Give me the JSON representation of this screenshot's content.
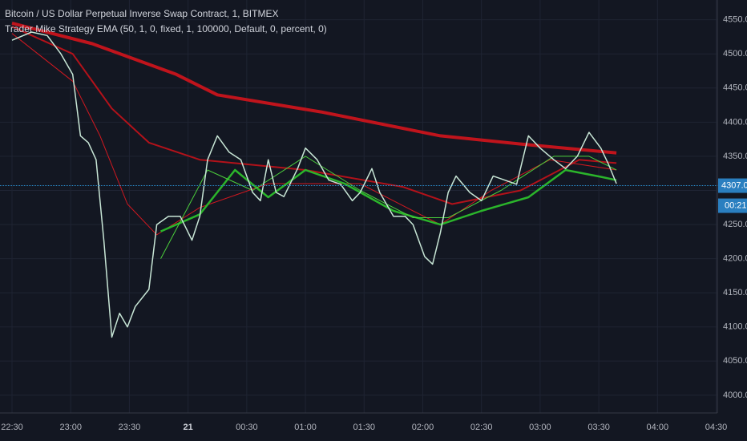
{
  "chart_data": {
    "type": "line",
    "title": "Bitcoin / US Dollar Perpetual Inverse Swap Contract, 1, BITMEX",
    "subtitle": "Trader Mike Strategy EMA (50, 1, 0, fixed, 1, 100000, Default, 0, percent, 0)",
    "xlim": [
      -6.15,
      360.6
    ],
    "ylim": [
      3974,
      4579
    ],
    "xticks": [
      {
        "value": 0,
        "label": "22:30"
      },
      {
        "value": 30,
        "label": "23:00"
      },
      {
        "value": 60,
        "label": "23:30"
      },
      {
        "value": 90,
        "label": "21"
      },
      {
        "value": 120,
        "label": "00:30"
      },
      {
        "value": 150,
        "label": "01:00"
      },
      {
        "value": 180,
        "label": "01:30"
      },
      {
        "value": 210,
        "label": "02:00"
      },
      {
        "value": 240,
        "label": "02:30"
      },
      {
        "value": 270,
        "label": "03:00"
      },
      {
        "value": 300,
        "label": "03:30"
      },
      {
        "value": 330,
        "label": "04:00"
      },
      {
        "value": 360,
        "label": "04:30"
      }
    ],
    "yticks": [
      {
        "value": 4000,
        "label": "4000.0"
      },
      {
        "value": 4050,
        "label": "4050.0"
      },
      {
        "value": 4100,
        "label": "4100.0"
      },
      {
        "value": 4150,
        "label": "4150.0"
      },
      {
        "value": 4200,
        "label": "4200.0"
      },
      {
        "value": 4250,
        "label": "4250.0"
      },
      {
        "value": 4300,
        "label": "4300.0"
      },
      {
        "value": 4350,
        "label": "4350.0"
      },
      {
        "value": 4400,
        "label": "4400.0"
      },
      {
        "value": 4450,
        "label": "4450.0"
      },
      {
        "value": 4500,
        "label": "4500.0"
      },
      {
        "value": 4550,
        "label": "4550.0"
      }
    ],
    "grid": true,
    "series": [
      {
        "color": "#c0141c",
        "width": 4,
        "x": [
          0,
          41,
          84,
          105,
          158,
          219,
          260,
          309
        ],
        "values": [
          4545,
          4515,
          4470,
          4440,
          4415,
          4380,
          4368,
          4355
        ]
      },
      {
        "color": "#b3121a",
        "width": 2,
        "x": [
          0,
          31,
          51,
          70,
          96,
          150,
          200,
          225,
          260,
          290,
          309
        ],
        "values": [
          4540,
          4500,
          4420,
          4370,
          4345,
          4330,
          4305,
          4280,
          4300,
          4345,
          4340
        ]
      },
      {
        "color": "#d01820",
        "width": 1,
        "x": [
          0,
          31,
          45,
          59,
          74,
          96,
          131,
          178,
          205,
          219,
          245,
          275,
          309
        ],
        "values": [
          4530,
          4460,
          4380,
          4280,
          4235,
          4275,
          4310,
          4310,
          4270,
          4250,
          4300,
          4345,
          4330
        ]
      },
      {
        "color": "#2bb52b",
        "width": 2.5,
        "x": [
          76,
          96,
          114,
          131,
          150,
          170,
          195,
          219,
          240,
          264,
          283,
          301,
          309
        ],
        "values": [
          4240,
          4265,
          4330,
          4290,
          4330,
          4310,
          4270,
          4250,
          4270,
          4290,
          4330,
          4320,
          4315
        ]
      },
      {
        "color": "#4ccf3c",
        "width": 1,
        "x": [
          76,
          100,
          123,
          150,
          178,
          205,
          223,
          250,
          277,
          295,
          309
        ],
        "values": [
          4200,
          4330,
          4300,
          4350,
          4300,
          4260,
          4260,
          4300,
          4350,
          4350,
          4330
        ]
      },
      {
        "color": "#c8e6d6",
        "width": 1.5,
        "x": [
          0,
          10,
          18,
          25,
          31,
          35,
          39,
          43,
          47,
          51,
          55,
          59,
          63,
          70,
          74,
          80,
          86,
          92,
          96,
          100,
          105,
          111,
          117,
          123,
          127,
          131,
          135,
          139,
          146,
          150,
          156,
          162,
          168,
          174,
          178,
          184,
          188,
          195,
          201,
          205,
          211,
          215,
          219,
          223,
          227,
          234,
          240,
          246,
          252,
          258,
          264,
          270,
          277,
          283,
          289,
          295,
          301,
          305,
          309
        ],
        "values": [
          4520,
          4532,
          4527,
          4500,
          4470,
          4380,
          4370,
          4345,
          4225,
          4085,
          4120,
          4100,
          4130,
          4155,
          4250,
          4262,
          4262,
          4227,
          4262,
          4345,
          4380,
          4356,
          4345,
          4297,
          4285,
          4345,
          4297,
          4291,
          4332,
          4362,
          4345,
          4315,
          4309,
          4285,
          4297,
          4332,
          4297,
          4262,
          4262,
          4250,
          4203,
          4192,
          4238,
          4297,
          4321,
          4297,
          4285,
          4321,
          4315,
          4309,
          4380,
          4362,
          4345,
          4332,
          4350,
          4385,
          4362,
          4338,
          4310
        ]
      }
    ],
    "last_price": {
      "value": 4307,
      "label": "4307.0"
    },
    "countdown": "00:21"
  }
}
